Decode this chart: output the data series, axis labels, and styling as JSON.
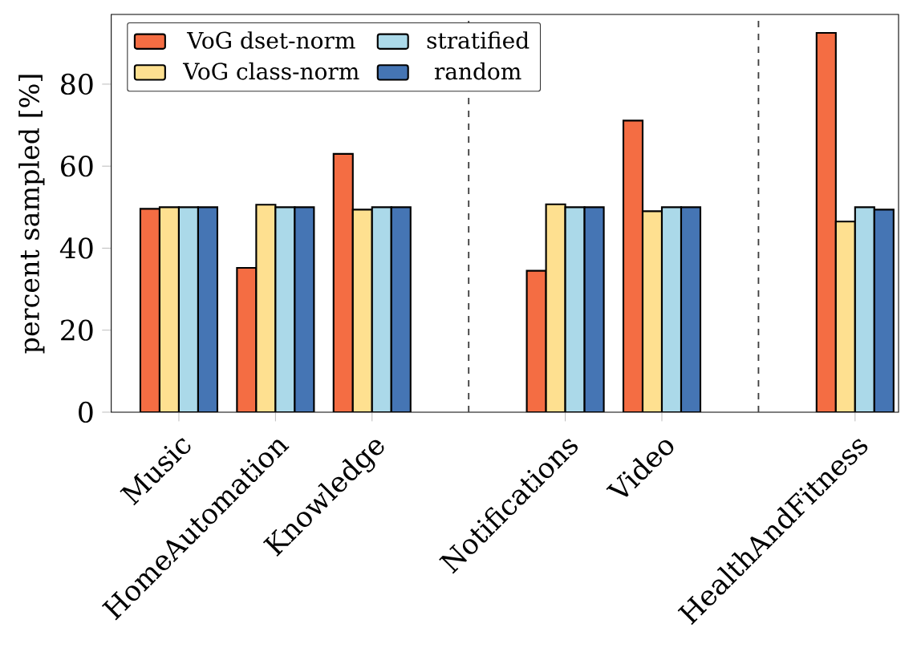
{
  "chart_data": {
    "type": "bar",
    "ylabel": "percent sampled [%]",
    "categories": [
      "Music",
      "HomeAutomation",
      "Knowledge",
      null,
      "Notifications",
      "Video",
      null,
      "HealthAndFitness"
    ],
    "series": [
      {
        "name": "VoG dset-norm",
        "color": "#f46d43",
        "values": [
          49.6,
          35.2,
          63.0,
          null,
          34.5,
          71.1,
          null,
          92.5
        ]
      },
      {
        "name": "VoG class-norm",
        "color": "#fee090",
        "values": [
          50.0,
          50.6,
          49.4,
          null,
          50.7,
          49.0,
          null,
          46.5
        ]
      },
      {
        "name": "stratified",
        "color": "#abd9e9",
        "values": [
          50.0,
          50.0,
          50.0,
          null,
          50.0,
          50.0,
          null,
          50.0
        ]
      },
      {
        "name": "random",
        "color": "#4575b4",
        "values": [
          50.0,
          50.0,
          50.0,
          null,
          50.0,
          50.0,
          null,
          49.4
        ]
      }
    ],
    "ylim": [
      0,
      97
    ],
    "yticks": [
      0,
      20,
      40,
      60,
      80
    ],
    "legend": "top left"
  }
}
